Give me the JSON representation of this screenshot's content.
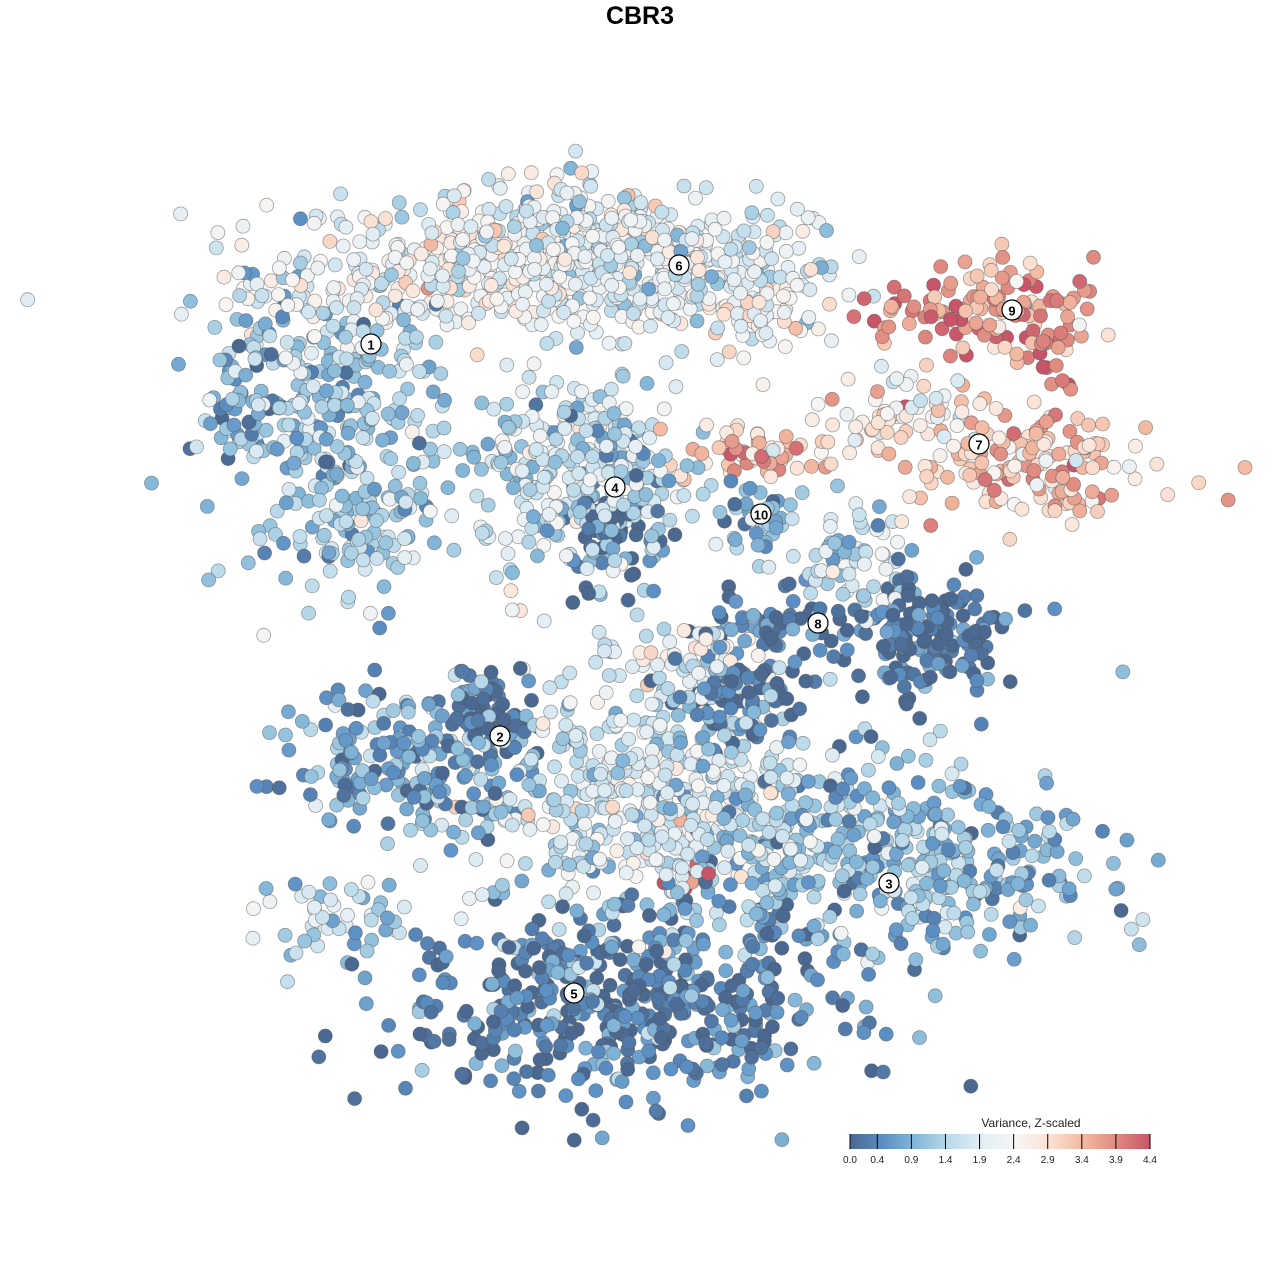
{
  "chart_data": {
    "type": "scatter",
    "title": "CBR3",
    "xlabel": "",
    "ylabel": "",
    "xlim": [
      -45,
      50
    ],
    "ylim": [
      -45,
      48
    ],
    "grid": false,
    "point_generation": "Gaussian blobs: [cx, cy, sx, sy, n, mean_value]; values ~ N(mean, 0.5) clipped to color range",
    "clusters": [
      {
        "id": "1",
        "label_pos": [
          -26.9,
          29.6
        ],
        "blobs": [
          [
            -17,
            37,
            11,
            3.5,
            350,
            2.2
          ],
          [
            -8,
            41,
            6,
            2.5,
            120,
            2.0
          ],
          [
            -30,
            21,
            6,
            7,
            300,
            1.2
          ],
          [
            -39,
            24,
            3,
            4,
            60,
            0.8
          ],
          [
            -29,
            10,
            3.5,
            2.5,
            60,
            1.5
          ]
        ]
      },
      {
        "id": "6",
        "label_pos": [
          3.9,
          37.5
        ],
        "blobs": [
          [
            1,
            38,
            8,
            3.5,
            300,
            1.9
          ],
          [
            12,
            34,
            4,
            2.5,
            80,
            2.3
          ]
        ]
      },
      {
        "id": "9",
        "label_pos": [
          37.2,
          33
        ],
        "blobs": [
          [
            37,
            33,
            4.5,
            2.5,
            100,
            3.6
          ],
          [
            27,
            33,
            2.5,
            1.5,
            30,
            4.0
          ],
          [
            41,
            27,
            1,
            3,
            15,
            4.0
          ]
        ]
      },
      {
        "id": "7",
        "label_pos": [
          33.9,
          19.6
        ],
        "blobs": [
          [
            39,
            17,
            6,
            3,
            150,
            3.2
          ],
          [
            26,
            23,
            4,
            2,
            60,
            2.6
          ],
          [
            12,
            19,
            5,
            1.5,
            60,
            3.3
          ]
        ]
      },
      {
        "id": "4",
        "label_pos": [
          -2.5,
          15.3
        ],
        "blobs": [
          [
            -6,
            16,
            5,
            5.5,
            300,
            1.6
          ],
          [
            -3,
            12,
            2.5,
            3.5,
            80,
            0.2
          ]
        ]
      },
      {
        "id": "10",
        "label_pos": [
          12.1,
          12.6
        ],
        "blobs": [
          [
            12,
            12,
            1.8,
            2,
            40,
            1.0
          ]
        ]
      },
      {
        "id": "8",
        "label_pos": [
          17.8,
          1.7
        ],
        "blobs": [
          [
            29,
            0,
            4.5,
            3.5,
            150,
            0.1
          ],
          [
            14,
            1.5,
            5,
            1.5,
            60,
            0.2
          ],
          [
            21,
            8,
            2.5,
            3,
            60,
            1.5
          ]
        ]
      },
      {
        "id": "2",
        "label_pos": [
          -14,
          -9.6
        ],
        "blobs": [
          [
            -22,
            -12,
            6,
            4,
            200,
            0.8
          ],
          [
            -15,
            -8,
            2.5,
            2.5,
            60,
            0.1
          ],
          [
            -30,
            -28,
            4,
            2,
            40,
            1.6
          ]
        ]
      },
      {
        "id": "",
        "label_pos": null,
        "blobs": [
          [
            1,
            -16,
            9,
            6,
            500,
            1.7
          ],
          [
            10,
            -6,
            3,
            2.5,
            80,
            0.1
          ],
          [
            5,
            -24,
            1.5,
            0.8,
            10,
            4.0
          ],
          [
            4,
            -1,
            4,
            2,
            40,
            2.0
          ]
        ]
      },
      {
        "id": "3",
        "label_pos": [
          24.9,
          -24.3
        ],
        "blobs": [
          [
            26,
            -22,
            10,
            5,
            400,
            1.0
          ]
        ]
      },
      {
        "id": "5",
        "label_pos": [
          -6.6,
          -35.3
        ],
        "blobs": [
          [
            -2,
            -36,
            11,
            5,
            500,
            0.3
          ]
        ]
      }
    ],
    "legend": {
      "title": "Variance, Z-scaled",
      "placement": "bottom-right",
      "ticks": [
        "0.0",
        "0.4",
        "0.9",
        "1.4",
        "1.9",
        "2.4",
        "2.9",
        "3.4",
        "3.9",
        "4.4"
      ],
      "range": [
        0,
        4.4
      ],
      "colors": [
        "#4a6890",
        "#5b8fc4",
        "#86b9d9",
        "#bcdbea",
        "#e3eef5",
        "#f7f5f3",
        "#fbe1d3",
        "#f3b8a0",
        "#e08a80",
        "#c85468"
      ]
    }
  }
}
